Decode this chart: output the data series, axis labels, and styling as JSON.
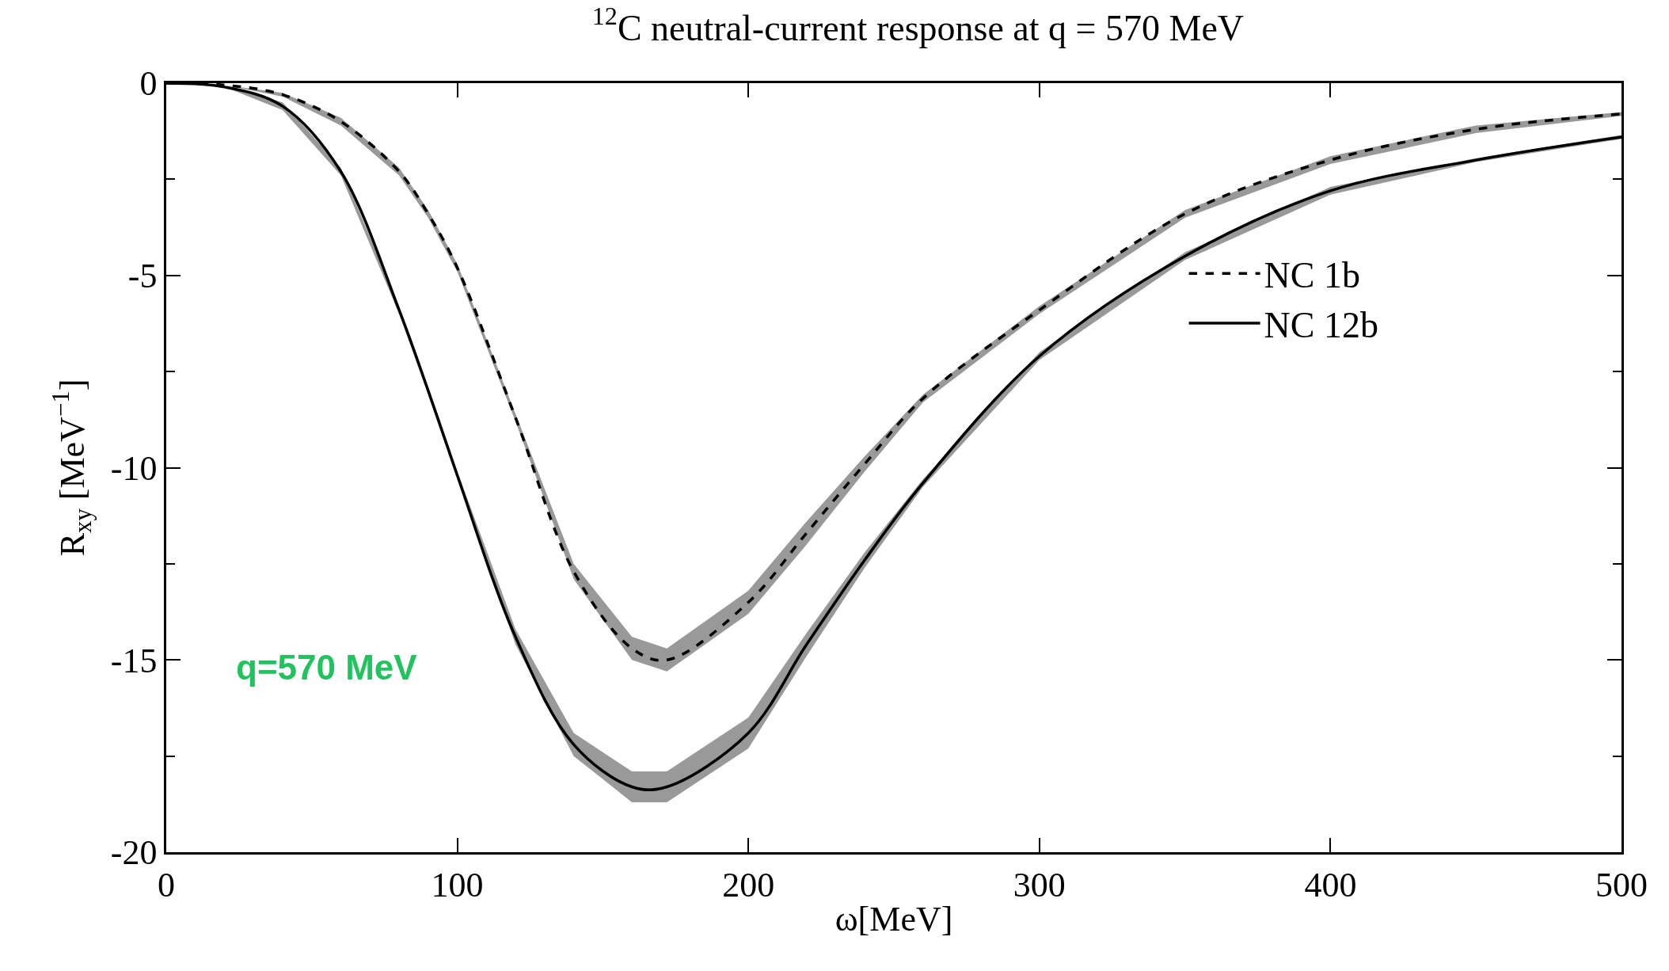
{
  "chart_data": {
    "type": "line",
    "title": "$^{12}$C neutral-current response at q = 570 MeV",
    "xlabel": "ω[MeV]",
    "ylabel": "R$_{xy}$ [MeV$^{−1}$]",
    "x": [
      0,
      20,
      40,
      60,
      80,
      90,
      100,
      120,
      140,
      160,
      172,
      200,
      220,
      240,
      260,
      300,
      350,
      400,
      450,
      500
    ],
    "series": [
      {
        "name": "NC 1b",
        "color": "#000000",
        "line_style": "dashed",
        "values": [
          0,
          -0.05,
          -0.3,
          -1.0,
          -2.3,
          -3.4,
          -4.8,
          -8.7,
          -12.7,
          -14.7,
          -15.0,
          -13.5,
          -11.7,
          -9.9,
          -8.2,
          -5.9,
          -3.4,
          -2.0,
          -1.2,
          -0.8
        ],
        "lower": [
          0,
          -0.05,
          -0.35,
          -1.1,
          -2.4,
          -3.5,
          -4.9,
          -8.8,
          -12.9,
          -15.0,
          -15.3,
          -13.8,
          -12.0,
          -10.1,
          -8.3,
          -6.0,
          -3.5,
          -2.1,
          -1.3,
          -0.85
        ],
        "upper": [
          0,
          -0.05,
          -0.25,
          -0.9,
          -2.2,
          -3.3,
          -4.7,
          -8.6,
          -12.5,
          -14.4,
          -14.7,
          -13.2,
          -11.4,
          -9.7,
          -8.1,
          -5.8,
          -3.3,
          -1.9,
          -1.1,
          -0.75
        ]
      },
      {
        "name": "NC 12b",
        "color": "#000000",
        "line_style": "solid",
        "values": [
          0,
          -0.1,
          -0.6,
          -2.3,
          -5.9,
          -8.0,
          -10.2,
          -14.4,
          -17.2,
          -18.3,
          -18.3,
          -16.9,
          -14.6,
          -12.4,
          -10.4,
          -7.1,
          -4.5,
          -2.8,
          -2.0,
          -1.4
        ],
        "lower": [
          0,
          -0.1,
          -0.7,
          -2.4,
          -6.0,
          -8.1,
          -10.3,
          -14.6,
          -17.5,
          -18.7,
          -18.7,
          -17.3,
          -14.9,
          -12.6,
          -10.5,
          -7.2,
          -4.6,
          -2.9,
          -2.05,
          -1.45
        ],
        "upper": [
          0,
          -0.1,
          -0.5,
          -2.2,
          -5.8,
          -7.9,
          -10.1,
          -14.2,
          -16.9,
          -17.9,
          -17.9,
          -16.5,
          -14.3,
          -12.2,
          -10.3,
          -7.0,
          -4.4,
          -2.7,
          -1.95,
          -1.35
        ]
      }
    ],
    "xlim": [
      0,
      500
    ],
    "ylim": [
      -20,
      0
    ],
    "xticks": [
      0,
      100,
      200,
      300,
      400,
      500
    ],
    "yticks": [
      -20,
      {
        "value": -17.5,
        "label": null
      },
      -15,
      {
        "value": -12.5,
        "label": null
      },
      -10,
      {
        "value": -7.5,
        "label": null
      },
      -5,
      {
        "value": -2.5,
        "label": null
      },
      0
    ],
    "grid": false,
    "legend": "right",
    "marker": "none",
    "annotations": [
      "q=570 MeV"
    ]
  }
}
